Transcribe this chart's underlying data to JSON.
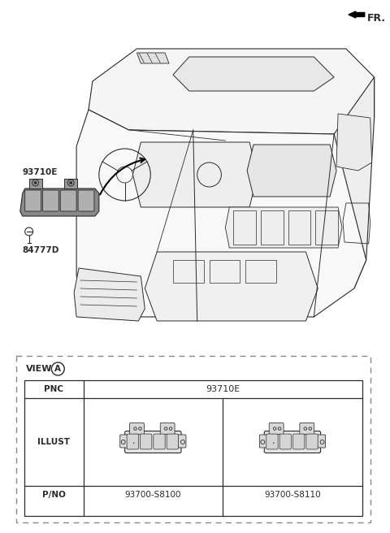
{
  "bg_color": "#ffffff",
  "line_color": "#2a2a2a",
  "fr_label": "FR.",
  "part_label_1": "93710E",
  "part_label_2": "84777D",
  "view_label": "VIEW",
  "view_circle": "A",
  "pnc_label": "PNC",
  "pnc_value": "93710E",
  "illust_label": "ILLUST",
  "pno_label": "P/NO",
  "pno_1": "93700-S8100",
  "pno_2": "93700-S8110",
  "dashed_border_color": "#888888",
  "fig_w": 4.8,
  "fig_h": 6.56,
  "dpi": 100
}
